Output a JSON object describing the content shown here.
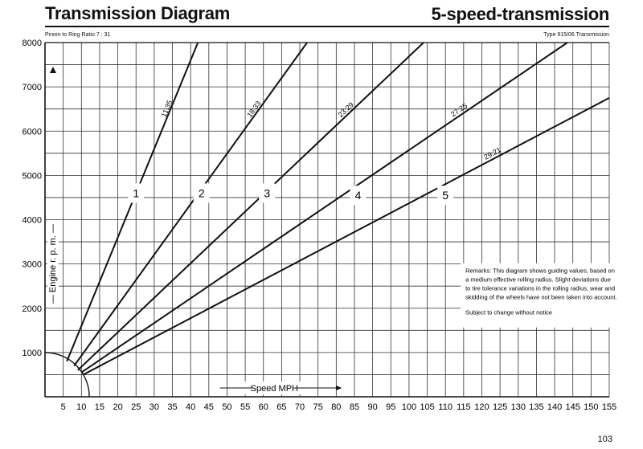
{
  "header": {
    "title": "Transmission Diagram",
    "subtitle": "5-speed-transmission",
    "left_note": "Pinion to Ring Ratio 7 : 31",
    "right_note": "Type 915/06  Transmission"
  },
  "page_number": "103",
  "chart_data": {
    "type": "line",
    "xlabel": "Speed MPH",
    "ylabel": "Engine r. p. m.",
    "xlim": [
      0,
      155
    ],
    "ylim": [
      0,
      8000
    ],
    "x_ticks": [
      5,
      10,
      15,
      20,
      25,
      30,
      35,
      40,
      45,
      50,
      55,
      60,
      65,
      70,
      75,
      80,
      85,
      90,
      95,
      100,
      105,
      110,
      115,
      120,
      125,
      130,
      135,
      140,
      145,
      150,
      155
    ],
    "y_ticks": [
      1000,
      2000,
      3000,
      4000,
      5000,
      6000,
      7000,
      8000
    ],
    "grid": true,
    "series": [
      {
        "name": "11:35",
        "gear": "1",
        "x": [
          6,
          42
        ],
        "y": [
          800,
          8000
        ]
      },
      {
        "name": "18:33",
        "gear": "2",
        "x": [
          8,
          72
        ],
        "y": [
          700,
          8000
        ]
      },
      {
        "name": "23:29",
        "gear": "3",
        "x": [
          9,
          104
        ],
        "y": [
          600,
          8000
        ]
      },
      {
        "name": "27:25",
        "gear": "4",
        "x": [
          10,
          143.5
        ],
        "y": [
          550,
          8000
        ]
      },
      {
        "name": "29:21",
        "gear": "5",
        "x": [
          10.5,
          155
        ],
        "y": [
          500,
          6750
        ]
      }
    ],
    "gear_labels": [
      {
        "text": "1",
        "x": 25,
        "y": 4600
      },
      {
        "text": "2",
        "x": 43,
        "y": 4600
      },
      {
        "text": "3",
        "x": 61,
        "y": 4600
      },
      {
        "text": "4",
        "x": 86,
        "y": 4550
      },
      {
        "text": "5",
        "x": 110,
        "y": 4550
      }
    ],
    "remarks": "Remarks: This diagram shows guiding values, based on a medium effective rolling radius. Slight deviations due to tire tolerance variations in the rolling radius, wear and skidding of the wheels have not been taken into account.",
    "remarks_lines": [
      "Remarks: This diagram shows guiding values, based on",
      "a medium effective rolling radius. Slight deviations due",
      "to tire tolerance variations in the rolling radius, wear and",
      "skidding of the wheels have not been taken into account."
    ],
    "notice": "Subject to change without notice"
  }
}
